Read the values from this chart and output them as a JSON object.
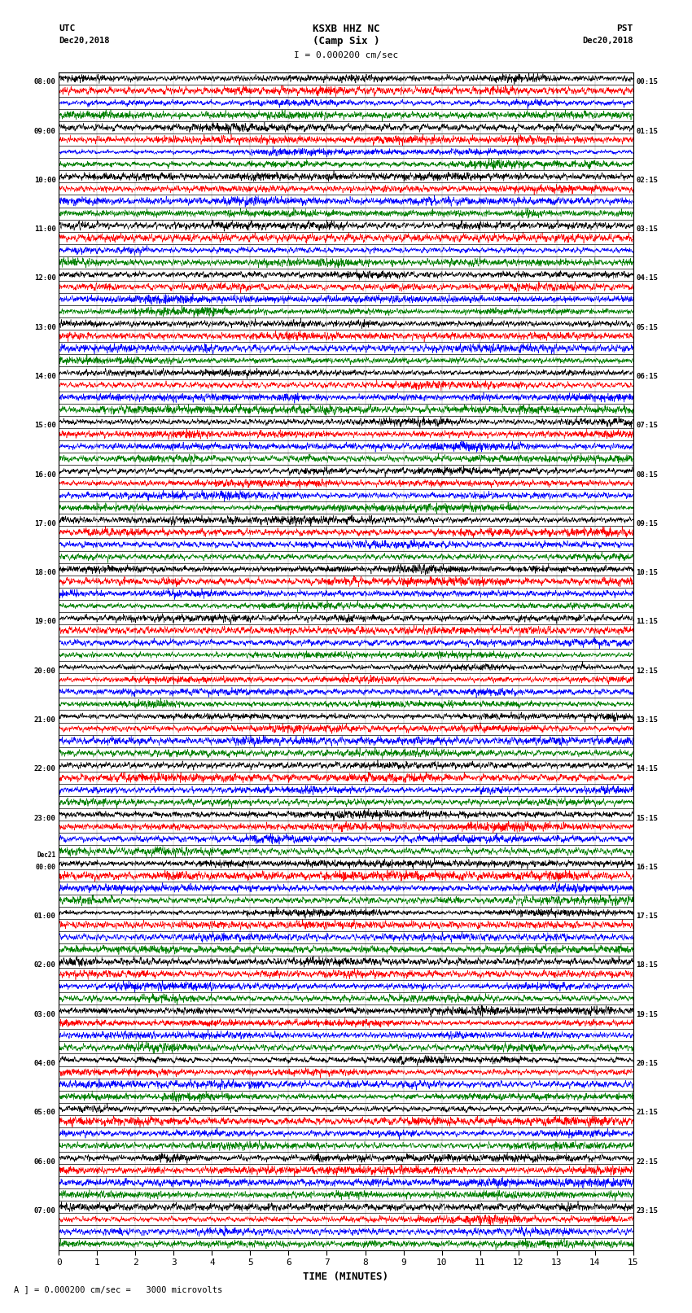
{
  "title_line1": "KSXB HHZ NC",
  "title_line2": "(Camp Six )",
  "scale_text": "I = 0.000200 cm/sec",
  "utc_label": "UTC",
  "utc_date": "Dec20,2018",
  "pst_label": "PST",
  "pst_date": "Dec20,2018",
  "xlabel": "TIME (MINUTES)",
  "bottom_label": "A ] = 0.000200 cm/sec =   3000 microvolts",
  "left_times": [
    "08:00",
    "09:00",
    "10:00",
    "11:00",
    "12:00",
    "13:00",
    "14:00",
    "15:00",
    "16:00",
    "17:00",
    "18:00",
    "19:00",
    "20:00",
    "21:00",
    "22:00",
    "23:00",
    "Dec21\n00:00",
    "01:00",
    "02:00",
    "03:00",
    "04:00",
    "05:00",
    "06:00",
    "07:00"
  ],
  "right_times": [
    "00:15",
    "01:15",
    "02:15",
    "03:15",
    "04:15",
    "05:15",
    "06:15",
    "07:15",
    "08:15",
    "09:15",
    "10:15",
    "11:15",
    "12:15",
    "13:15",
    "14:15",
    "15:15",
    "16:15",
    "17:15",
    "18:15",
    "19:15",
    "20:15",
    "21:15",
    "22:15",
    "23:15"
  ],
  "n_traces": 96,
  "n_hours": 24,
  "traces_per_hour": 4,
  "trace_duration_minutes": 15,
  "colors_cycle": [
    "black",
    "red",
    "blue",
    "green"
  ],
  "bg_color": "white",
  "xticks": [
    0,
    1,
    2,
    3,
    4,
    5,
    6,
    7,
    8,
    9,
    10,
    11,
    12,
    13,
    14,
    15
  ],
  "fig_width": 8.5,
  "fig_height": 16.13
}
